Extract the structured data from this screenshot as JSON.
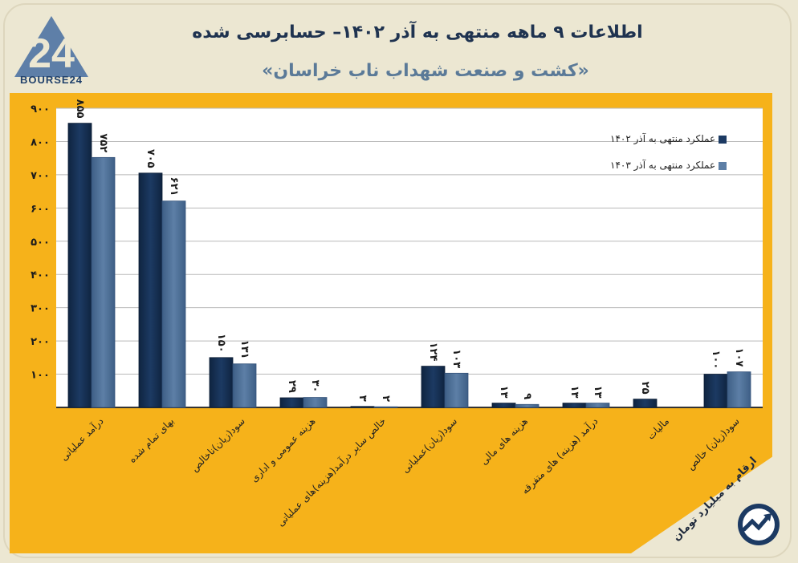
{
  "header": {
    "title_line1": "اطلاعات ۹ ماهه منتهی به آذر ۱۴۰۲– حسابرسی شده",
    "title_line2": "«کشت و صنعت شهداب ناب خراسان»",
    "logo_number": "24",
    "logo_text": "BOURSE24"
  },
  "units_note": "ارقام به میلیارد تومان",
  "colors": {
    "series1": "#1c3a63",
    "series2": "#5d7fa6",
    "panel": "#f6b21a",
    "background": "#ece7d2"
  },
  "chart_data": {
    "type": "bar",
    "title": "اطلاعات ۹ ماهه منتهی به آذر ۱۴۰۲– حسابرسی شده",
    "ylim": [
      0,
      900
    ],
    "yticks": [
      100,
      200,
      300,
      400,
      500,
      600,
      700,
      800,
      900
    ],
    "ytick_labels": [
      "۱۰۰",
      "۲۰۰",
      "۳۰۰",
      "۴۰۰",
      "۵۰۰",
      "۶۰۰",
      "۷۰۰",
      "۸۰۰",
      "۹۰۰"
    ],
    "grid": true,
    "legend_position": "top-right",
    "categories": [
      "درآمد عملیاتی",
      "بهای تمام شده",
      "سود(زیان)ناخالص",
      "هزینه عمومی و اداری",
      "خالص سایر درآمد(هزینه)های عملیاتی",
      "سود(زیان)عملیاتی",
      "هزینه های مالی",
      "درآمد (هزینه) های متفرقه",
      "مالیات",
      "سود(زیان) خالص"
    ],
    "series": [
      {
        "name": "عملکرد منتهی به آذر ۱۴۰۲",
        "values": [
          855,
          705,
          150,
          29,
          3,
          124,
          13,
          13,
          25,
          100
        ],
        "labels": [
          "۸۵۵",
          "۷۰۵",
          "۱۵۰",
          "۲۹",
          "۳",
          "۱۲۴",
          "۱۳",
          "۱۳",
          "۲۵",
          "۱۰۰"
        ]
      },
      {
        "name": "عملکرد منتهی به آذر ۱۴۰۳",
        "values": [
          752,
          621,
          131,
          30,
          2,
          103,
          9,
          13,
          null,
          107
        ],
        "labels": [
          "۷۵۲",
          "۶۲۱",
          "۱۳۱",
          "۳۰",
          "۲",
          "۱۰۳",
          "۹",
          "۱۳",
          "",
          "۱۰۷"
        ]
      }
    ]
  }
}
